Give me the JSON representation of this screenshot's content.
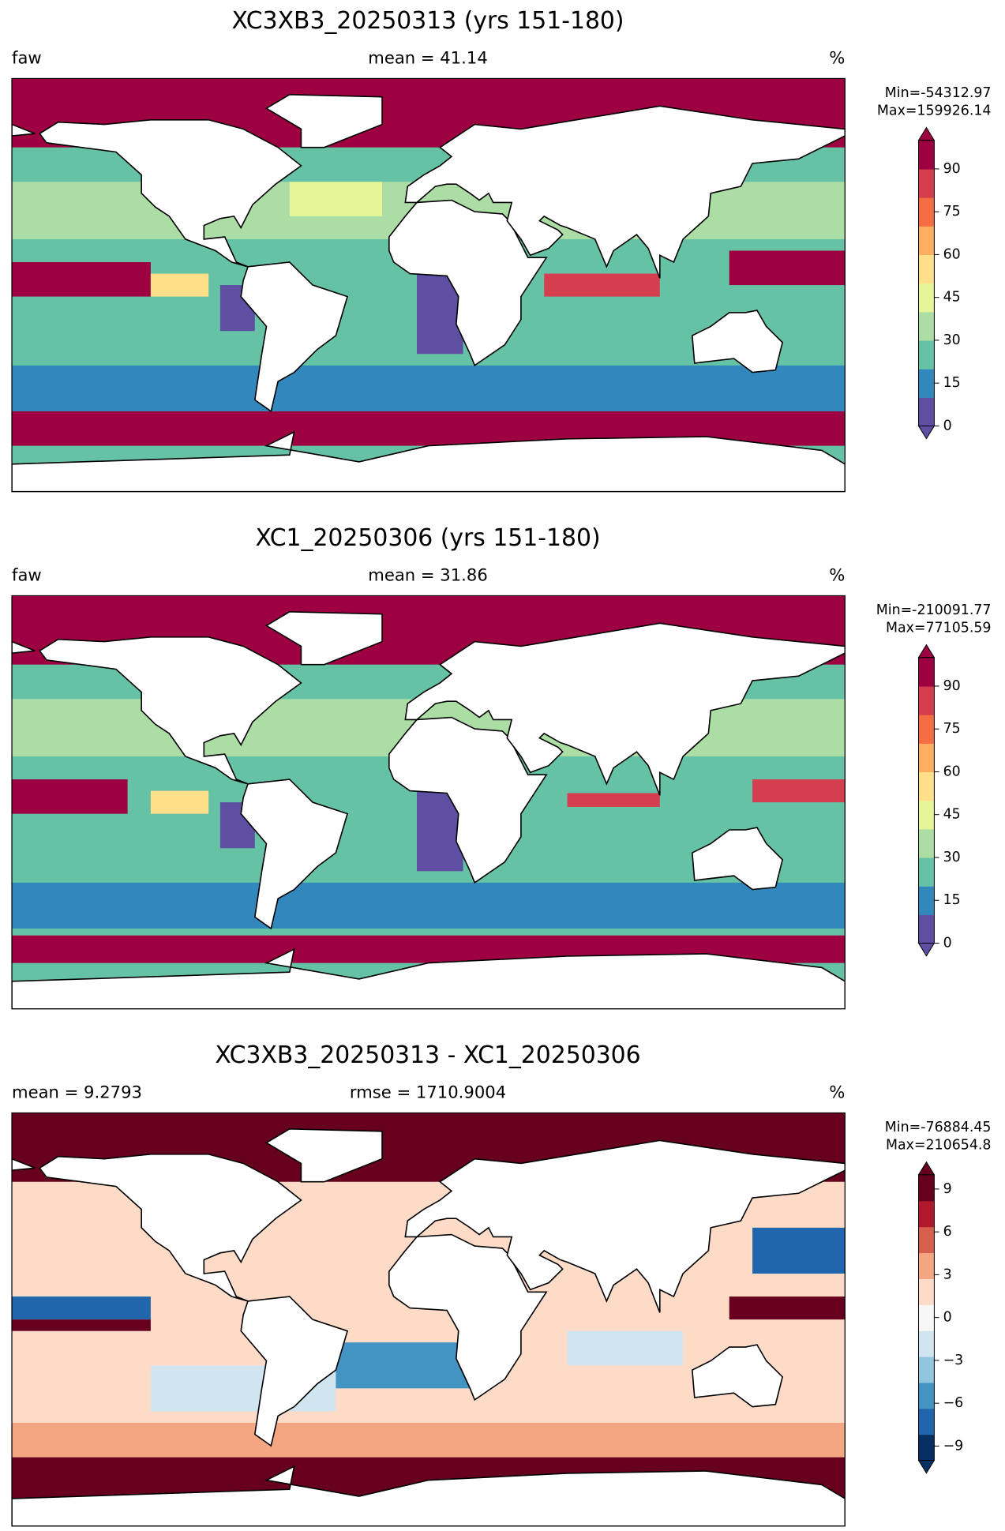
{
  "chart_data": [
    {
      "type": "map",
      "title": "XC3XB3_20250313 (yrs 151-180)",
      "left_label": "faw",
      "center_label": "mean = 41.14",
      "right_label": "%",
      "stats": [
        "Min=-54312.97",
        "Max=159926.14"
      ],
      "ylim": [
        0,
        100
      ],
      "yticks": [
        0,
        15,
        30,
        45,
        60,
        75,
        90
      ],
      "colors": [
        "#5e4fa2",
        "#3288bd",
        "#66c2a5",
        "#abdda4",
        "#e6f598",
        "#fee08b",
        "#fdae61",
        "#f46d43",
        "#d53e4f",
        "#9e0142"
      ]
    },
    {
      "type": "map",
      "title": "XC1_20250306 (yrs 151-180)",
      "left_label": "faw",
      "center_label": "mean = 31.86",
      "right_label": "%",
      "stats": [
        "Min=-210091.77",
        "Max=77105.59"
      ],
      "ylim": [
        0,
        100
      ],
      "yticks": [
        0,
        15,
        30,
        45,
        60,
        75,
        90
      ],
      "colors": [
        "#5e4fa2",
        "#3288bd",
        "#66c2a5",
        "#abdda4",
        "#e6f598",
        "#fee08b",
        "#fdae61",
        "#f46d43",
        "#d53e4f",
        "#9e0142"
      ]
    },
    {
      "type": "map",
      "title": "XC3XB3_20250313 - XC1_20250306",
      "left_label": "mean = 9.2793",
      "center_label": "rmse = 1710.9004",
      "right_label": "%",
      "stats": [
        "Min=-76884.45",
        "Max=210654.8"
      ],
      "ylim": [
        -10,
        10
      ],
      "yticks": [
        {
          "value": -9,
          "label": "−9"
        },
        {
          "value": -6,
          "label": "−6"
        },
        {
          "value": -3,
          "label": "−3"
        },
        0,
        3,
        6,
        9
      ],
      "colors": [
        "#053061",
        "#2166ac",
        "#4393c3",
        "#92c5de",
        "#d1e5f0",
        "#f7f7f7",
        "#fddbc7",
        "#f4a582",
        "#d6604d",
        "#b2182b",
        "#67001f"
      ]
    }
  ]
}
